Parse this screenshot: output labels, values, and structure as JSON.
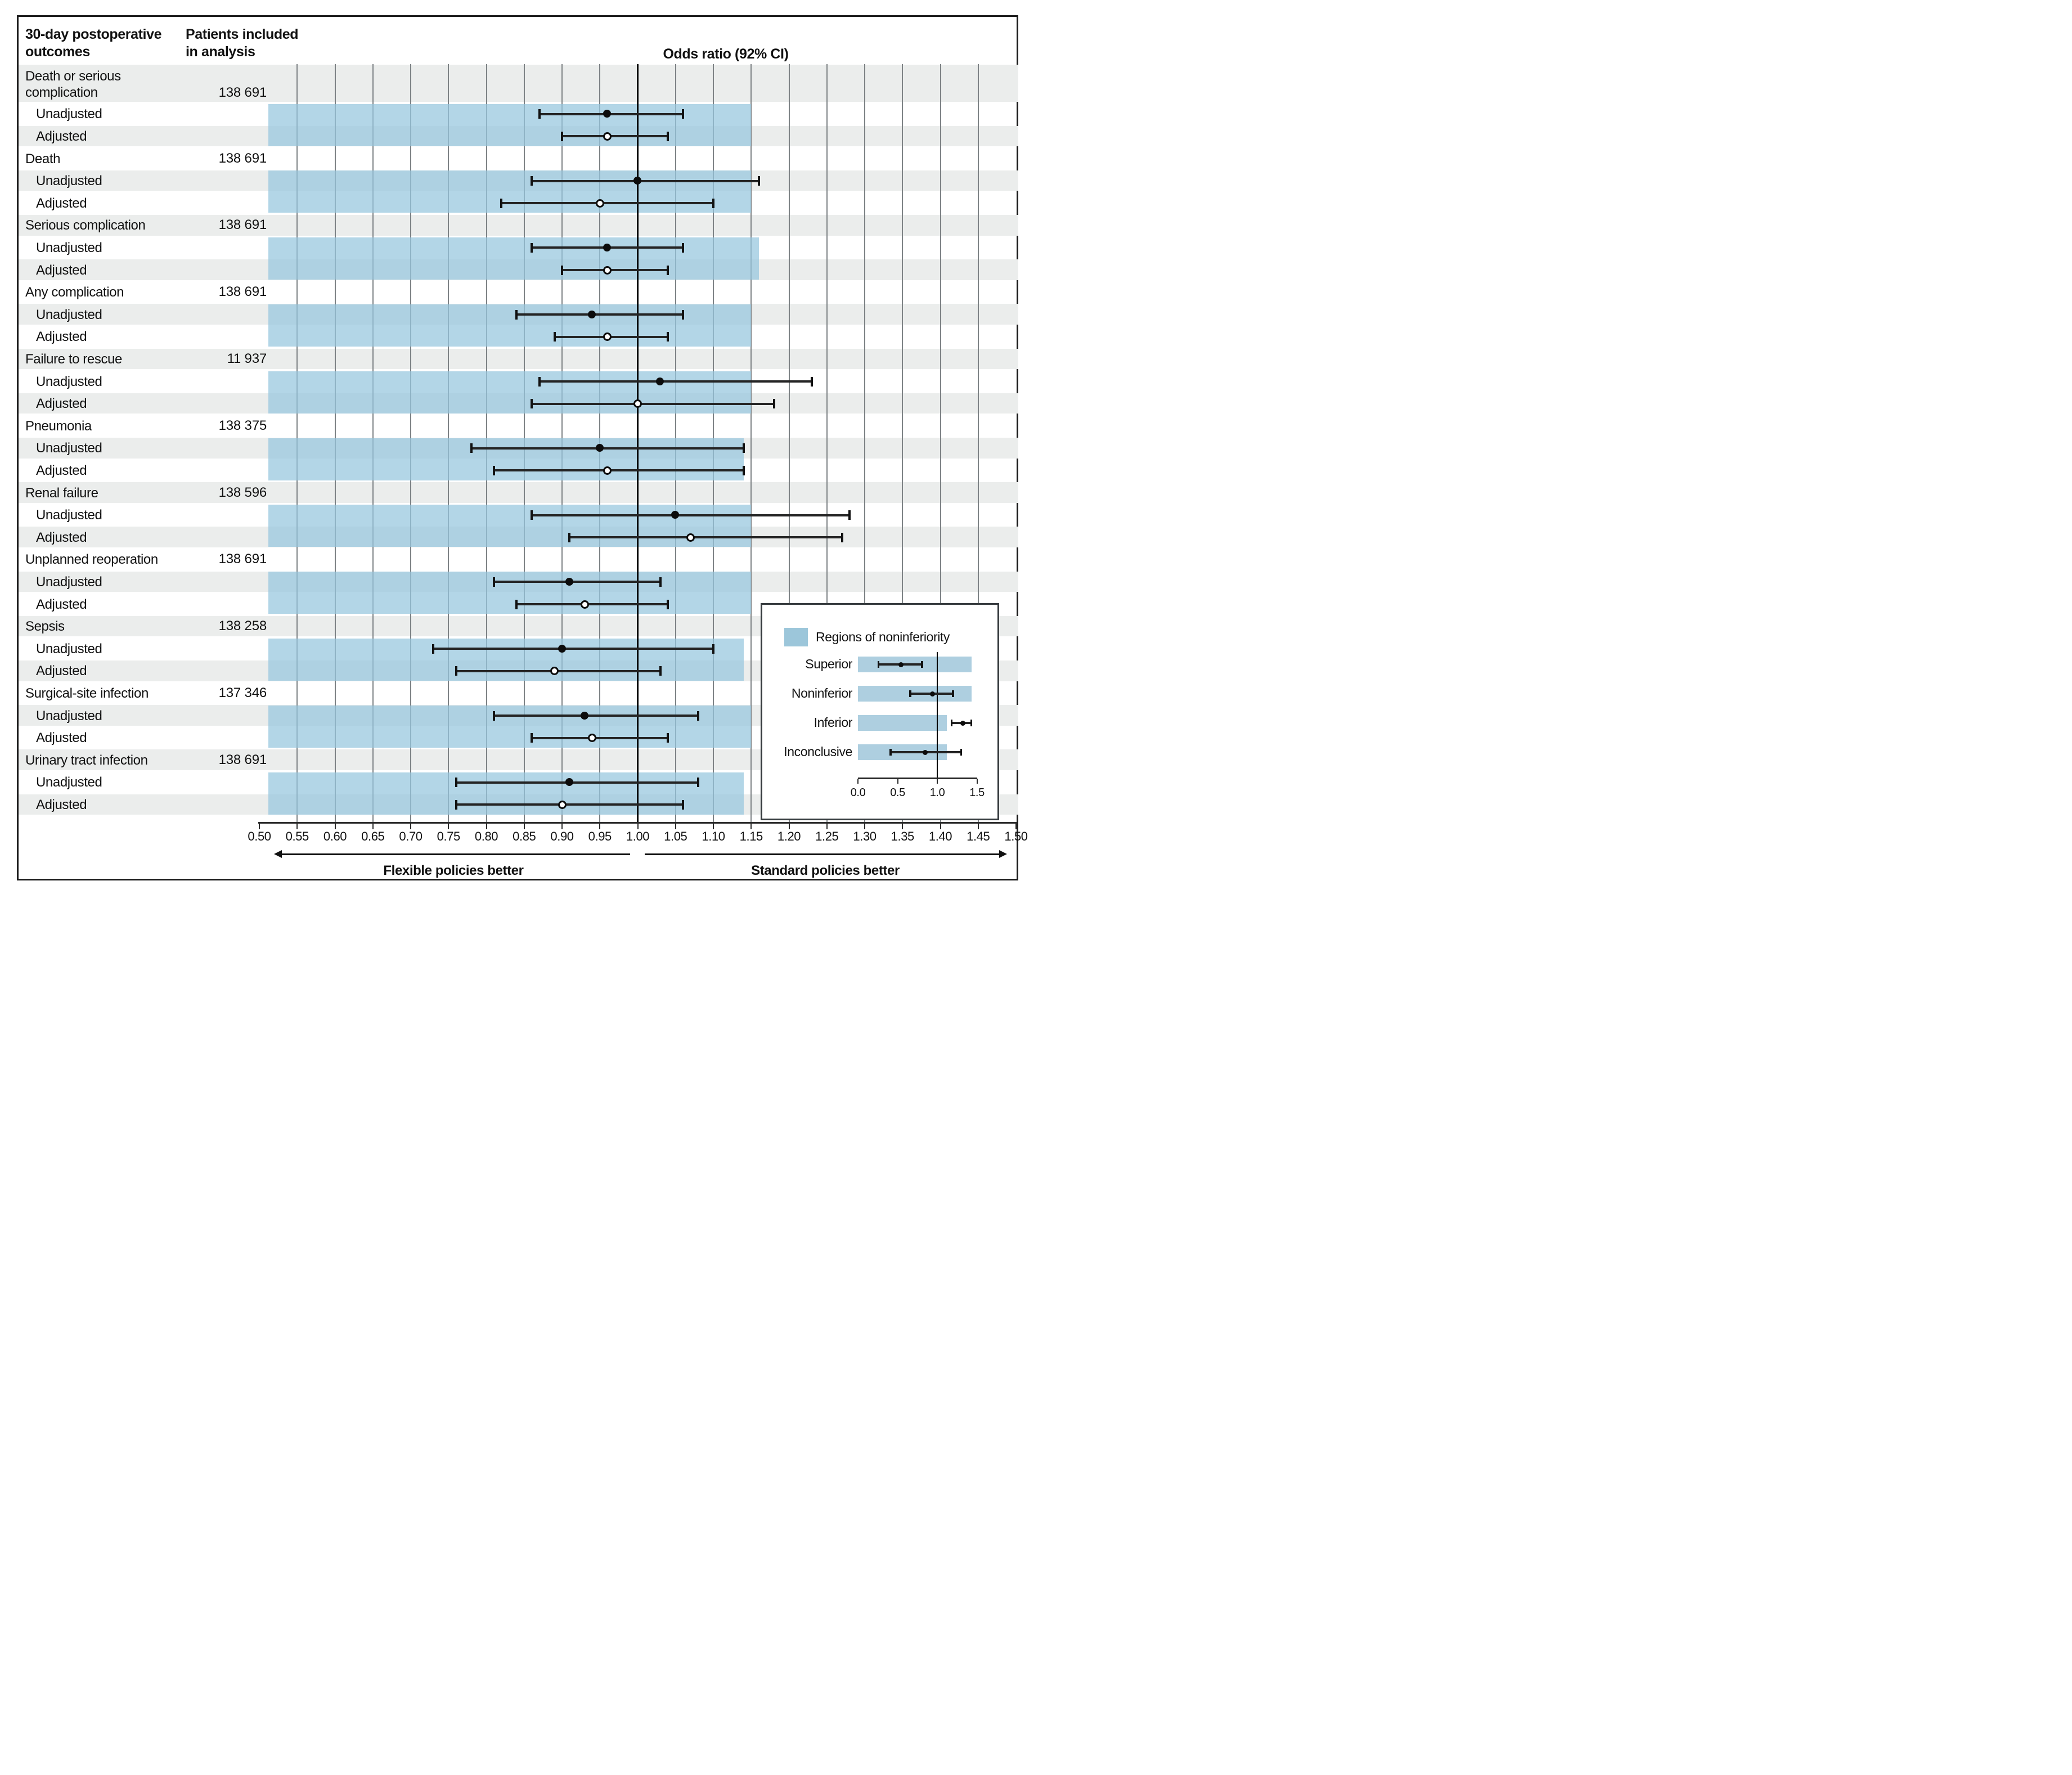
{
  "figure": {
    "col1_header": "30-day postoperative\noutcomes",
    "col2_header": "Patients included\nin analysis",
    "axis_title": "Odds ratio (92% CI)",
    "left_direction_label": "Flexible policies better",
    "right_direction_label": "Standard policies better"
  },
  "chart_data": {
    "type": "forest",
    "title": "Odds ratio (92% CI)",
    "x_axis": {
      "min": 0.5,
      "max": 1.5,
      "reference_line": 1.0,
      "tick_labels": [
        "0.50",
        "0.55",
        "0.60",
        "0.65",
        "0.70",
        "0.75",
        "0.80",
        "0.85",
        "0.90",
        "0.95",
        "1.00",
        "1.05",
        "1.10",
        "1.15",
        "1.20",
        "1.25",
        "1.30",
        "1.35",
        "1.40",
        "1.45",
        "1.50"
      ]
    },
    "row_sublabels": [
      "Unadjusted",
      "Adjusted"
    ],
    "noninferiority_region_start": 0.512,
    "outcomes": [
      {
        "label": "Death or serious\ncomplication",
        "patients": "138 691",
        "region_end": 1.15,
        "unadjusted": {
          "ci_low": 0.87,
          "estimate": 0.96,
          "ci_high": 1.06
        },
        "adjusted": {
          "ci_low": 0.9,
          "estimate": 0.96,
          "ci_high": 1.04
        }
      },
      {
        "label": "Death",
        "patients": "138 691",
        "region_end": 1.15,
        "unadjusted": {
          "ci_low": 0.86,
          "estimate": 1.0,
          "ci_high": 1.16
        },
        "adjusted": {
          "ci_low": 0.82,
          "estimate": 0.95,
          "ci_high": 1.1
        }
      },
      {
        "label": "Serious complication",
        "patients": "138 691",
        "region_end": 1.16,
        "unadjusted": {
          "ci_low": 0.86,
          "estimate": 0.96,
          "ci_high": 1.06
        },
        "adjusted": {
          "ci_low": 0.9,
          "estimate": 0.96,
          "ci_high": 1.04
        }
      },
      {
        "label": "Any complication",
        "patients": "138 691",
        "region_end": 1.15,
        "unadjusted": {
          "ci_low": 0.84,
          "estimate": 0.94,
          "ci_high": 1.06
        },
        "adjusted": {
          "ci_low": 0.89,
          "estimate": 0.96,
          "ci_high": 1.04
        }
      },
      {
        "label": "Failure to rescue",
        "patients": "11 937",
        "region_end": 1.15,
        "unadjusted": {
          "ci_low": 0.87,
          "estimate": 1.03,
          "ci_high": 1.23
        },
        "adjusted": {
          "ci_low": 0.86,
          "estimate": 1.0,
          "ci_high": 1.18
        }
      },
      {
        "label": "Pneumonia",
        "patients": "138 375",
        "region_end": 1.14,
        "unadjusted": {
          "ci_low": 0.78,
          "estimate": 0.95,
          "ci_high": 1.14
        },
        "adjusted": {
          "ci_low": 0.81,
          "estimate": 0.96,
          "ci_high": 1.14
        }
      },
      {
        "label": "Renal failure",
        "patients": "138 596",
        "region_end": 1.15,
        "unadjusted": {
          "ci_low": 0.86,
          "estimate": 1.05,
          "ci_high": 1.28
        },
        "adjusted": {
          "ci_low": 0.91,
          "estimate": 1.07,
          "ci_high": 1.27
        }
      },
      {
        "label": "Unplanned reoperation",
        "patients": "138 691",
        "region_end": 1.15,
        "unadjusted": {
          "ci_low": 0.81,
          "estimate": 0.91,
          "ci_high": 1.03
        },
        "adjusted": {
          "ci_low": 0.84,
          "estimate": 0.93,
          "ci_high": 1.04
        }
      },
      {
        "label": "Sepsis",
        "patients": "138 258",
        "region_end": 1.14,
        "unadjusted": {
          "ci_low": 0.73,
          "estimate": 0.9,
          "ci_high": 1.1
        },
        "adjusted": {
          "ci_low": 0.76,
          "estimate": 0.89,
          "ci_high": 1.03
        }
      },
      {
        "label": "Surgical-site infection",
        "patients": "137 346",
        "region_end": 1.15,
        "unadjusted": {
          "ci_low": 0.81,
          "estimate": 0.93,
          "ci_high": 1.08
        },
        "adjusted": {
          "ci_low": 0.86,
          "estimate": 0.94,
          "ci_high": 1.04
        }
      },
      {
        "label": "Urinary tract infection",
        "patients": "138 691",
        "region_end": 1.14,
        "unadjusted": {
          "ci_low": 0.76,
          "estimate": 0.91,
          "ci_high": 1.08
        },
        "adjusted": {
          "ci_low": 0.76,
          "estimate": 0.9,
          "ci_high": 1.06
        }
      }
    ],
    "legend": {
      "title": "Regions of noninferiority",
      "axis_tick_labels": [
        "0.0",
        "0.5",
        "1.0",
        "1.5"
      ],
      "reference_line": 1.0,
      "rows": [
        {
          "label": "Superior",
          "region_end": 1.43,
          "ci_low": 0.26,
          "estimate": 0.54,
          "ci_high": 0.81
        },
        {
          "label": "Noninferior",
          "region_end": 1.43,
          "ci_low": 0.66,
          "estimate": 0.94,
          "ci_high": 1.2
        },
        {
          "label": "Inferior",
          "region_end": 1.12,
          "ci_low": 1.18,
          "estimate": 1.32,
          "ci_high": 1.43
        },
        {
          "label": "Inconclusive",
          "region_end": 1.12,
          "ci_low": 0.41,
          "estimate": 0.85,
          "ci_high": 1.3
        }
      ]
    }
  }
}
